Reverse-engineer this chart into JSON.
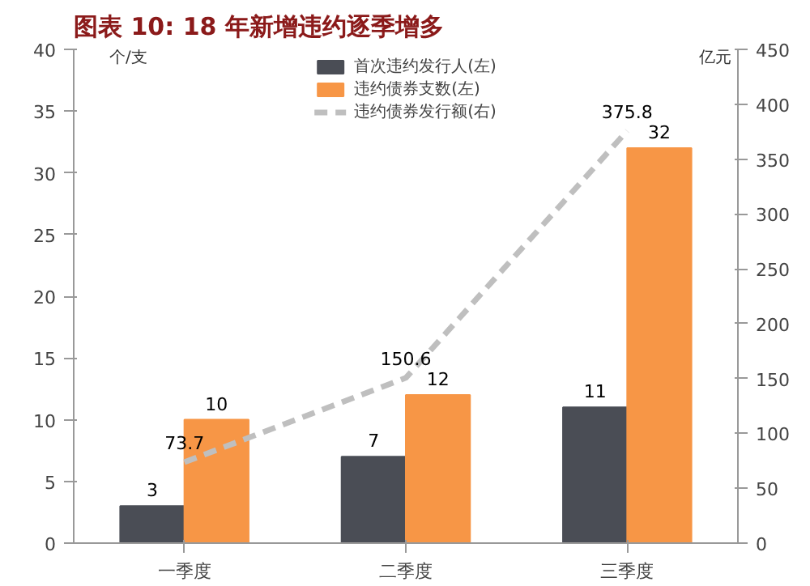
{
  "chart_data": {
    "type": "bar",
    "title": "图表 10: 18 年新增违约逐季增多",
    "ylabel": "个/支",
    "y2label": "亿元",
    "categories": [
      "一季度",
      "二季度",
      "三季度"
    ],
    "series": [
      {
        "name": "首次违约发行人(左)",
        "color": "#4a4d55",
        "values": [
          3,
          7,
          11
        ]
      },
      {
        "name": "违约债券支数(左)",
        "color": "#f79646",
        "values": [
          10,
          12,
          32
        ]
      },
      {
        "name": "违约债券发行额(右)",
        "type": "line",
        "axis": "y2",
        "color": "#bfbfbf",
        "line_style": "dashed",
        "values": [
          73.7,
          150.6,
          375.8
        ]
      }
    ],
    "ylim": [
      0,
      40
    ],
    "yticks": [
      0,
      5,
      10,
      15,
      20,
      25,
      30,
      35,
      40
    ],
    "y2lim": [
      0,
      450
    ],
    "y2ticks": [
      0,
      50,
      100,
      150,
      200,
      250,
      300,
      350,
      400,
      450
    ],
    "data_labels": true,
    "legend": "top",
    "grid": false
  }
}
